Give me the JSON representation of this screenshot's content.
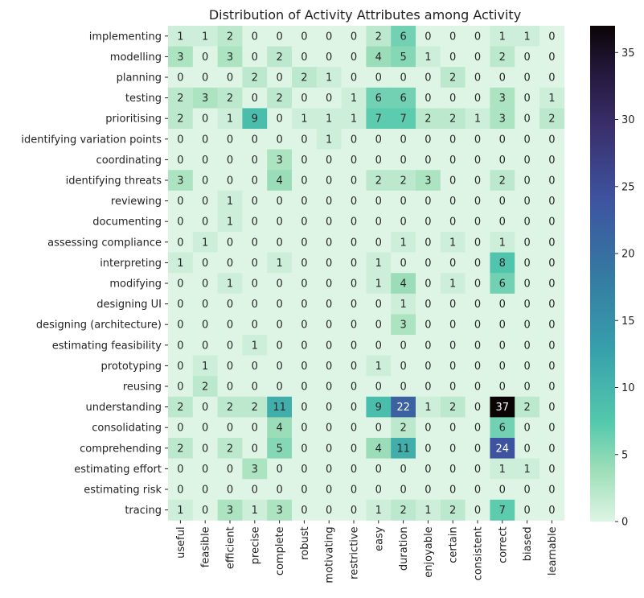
{
  "chart_data": {
    "type": "heatmap",
    "title": "Distribution of Activity Attributes among Activity",
    "xlabel": "",
    "ylabel": "",
    "columns": [
      "useful",
      "feasible",
      "efficient",
      "precise",
      "complete",
      "robust",
      "motivating",
      "restrictive",
      "easy",
      "duration",
      "enjoyable",
      "certain",
      "consistent",
      "correct",
      "biased",
      "learnable"
    ],
    "rows": [
      "implementing",
      "modelling",
      "planning",
      "testing",
      "prioritising",
      "identifying variation points",
      "coordinating",
      "identifying threats",
      "reviewing",
      "documenting",
      "assessing compliance",
      "interpreting",
      "modifying",
      "designing UI",
      "designing (architecture)",
      "estimating feasibility",
      "prototyping",
      "reusing",
      "understanding",
      "consolidating",
      "comprehending",
      "estimating effort",
      "estimating risk",
      "tracing"
    ],
    "values": [
      [
        1,
        1,
        2,
        0,
        0,
        0,
        0,
        0,
        2,
        6,
        0,
        0,
        0,
        1,
        1,
        0
      ],
      [
        3,
        0,
        3,
        0,
        2,
        0,
        0,
        0,
        4,
        5,
        1,
        0,
        0,
        2,
        0,
        0
      ],
      [
        0,
        0,
        0,
        2,
        0,
        2,
        1,
        0,
        0,
        0,
        0,
        2,
        0,
        0,
        0,
        0
      ],
      [
        2,
        3,
        2,
        0,
        2,
        0,
        0,
        1,
        6,
        6,
        0,
        0,
        0,
        3,
        0,
        1
      ],
      [
        2,
        0,
        1,
        9,
        0,
        1,
        1,
        1,
        7,
        7,
        2,
        2,
        1,
        3,
        0,
        2
      ],
      [
        0,
        0,
        0,
        0,
        0,
        0,
        1,
        0,
        0,
        0,
        0,
        0,
        0,
        0,
        0,
        0
      ],
      [
        0,
        0,
        0,
        0,
        3,
        0,
        0,
        0,
        0,
        0,
        0,
        0,
        0,
        0,
        0,
        0
      ],
      [
        3,
        0,
        0,
        0,
        4,
        0,
        0,
        0,
        2,
        2,
        3,
        0,
        0,
        2,
        0,
        0
      ],
      [
        0,
        0,
        1,
        0,
        0,
        0,
        0,
        0,
        0,
        0,
        0,
        0,
        0,
        0,
        0,
        0
      ],
      [
        0,
        0,
        1,
        0,
        0,
        0,
        0,
        0,
        0,
        0,
        0,
        0,
        0,
        0,
        0,
        0
      ],
      [
        0,
        1,
        0,
        0,
        0,
        0,
        0,
        0,
        0,
        1,
        0,
        1,
        0,
        1,
        0,
        0
      ],
      [
        1,
        0,
        0,
        0,
        1,
        0,
        0,
        0,
        1,
        0,
        0,
        0,
        0,
        8,
        0,
        0
      ],
      [
        0,
        0,
        1,
        0,
        0,
        0,
        0,
        0,
        1,
        4,
        0,
        1,
        0,
        6,
        0,
        0
      ],
      [
        0,
        0,
        0,
        0,
        0,
        0,
        0,
        0,
        0,
        1,
        0,
        0,
        0,
        0,
        0,
        0
      ],
      [
        0,
        0,
        0,
        0,
        0,
        0,
        0,
        0,
        0,
        3,
        0,
        0,
        0,
        0,
        0,
        0
      ],
      [
        0,
        0,
        0,
        1,
        0,
        0,
        0,
        0,
        0,
        0,
        0,
        0,
        0,
        0,
        0,
        0
      ],
      [
        0,
        1,
        0,
        0,
        0,
        0,
        0,
        0,
        1,
        0,
        0,
        0,
        0,
        0,
        0,
        0
      ],
      [
        0,
        2,
        0,
        0,
        0,
        0,
        0,
        0,
        0,
        0,
        0,
        0,
        0,
        0,
        0,
        0
      ],
      [
        2,
        0,
        2,
        2,
        11,
        0,
        0,
        0,
        9,
        22,
        1,
        2,
        0,
        37,
        2,
        0
      ],
      [
        0,
        0,
        0,
        0,
        4,
        0,
        0,
        0,
        0,
        2,
        0,
        0,
        0,
        6,
        0,
        0
      ],
      [
        2,
        0,
        2,
        0,
        5,
        0,
        0,
        0,
        4,
        11,
        0,
        0,
        0,
        24,
        0,
        0
      ],
      [
        0,
        0,
        0,
        3,
        0,
        0,
        0,
        0,
        0,
        0,
        0,
        0,
        0,
        1,
        1,
        0
      ],
      [
        0,
        0,
        0,
        0,
        0,
        0,
        0,
        0,
        0,
        0,
        0,
        0,
        0,
        0,
        0,
        0
      ],
      [
        1,
        0,
        3,
        1,
        3,
        0,
        0,
        0,
        1,
        2,
        1,
        2,
        0,
        7,
        0,
        0
      ]
    ],
    "colorbar": {
      "min": 0,
      "max": 37,
      "ticks": [
        0,
        5,
        10,
        15,
        20,
        25,
        30,
        35
      ],
      "colormap": "mako_r"
    },
    "annotations": true,
    "grid": false
  }
}
